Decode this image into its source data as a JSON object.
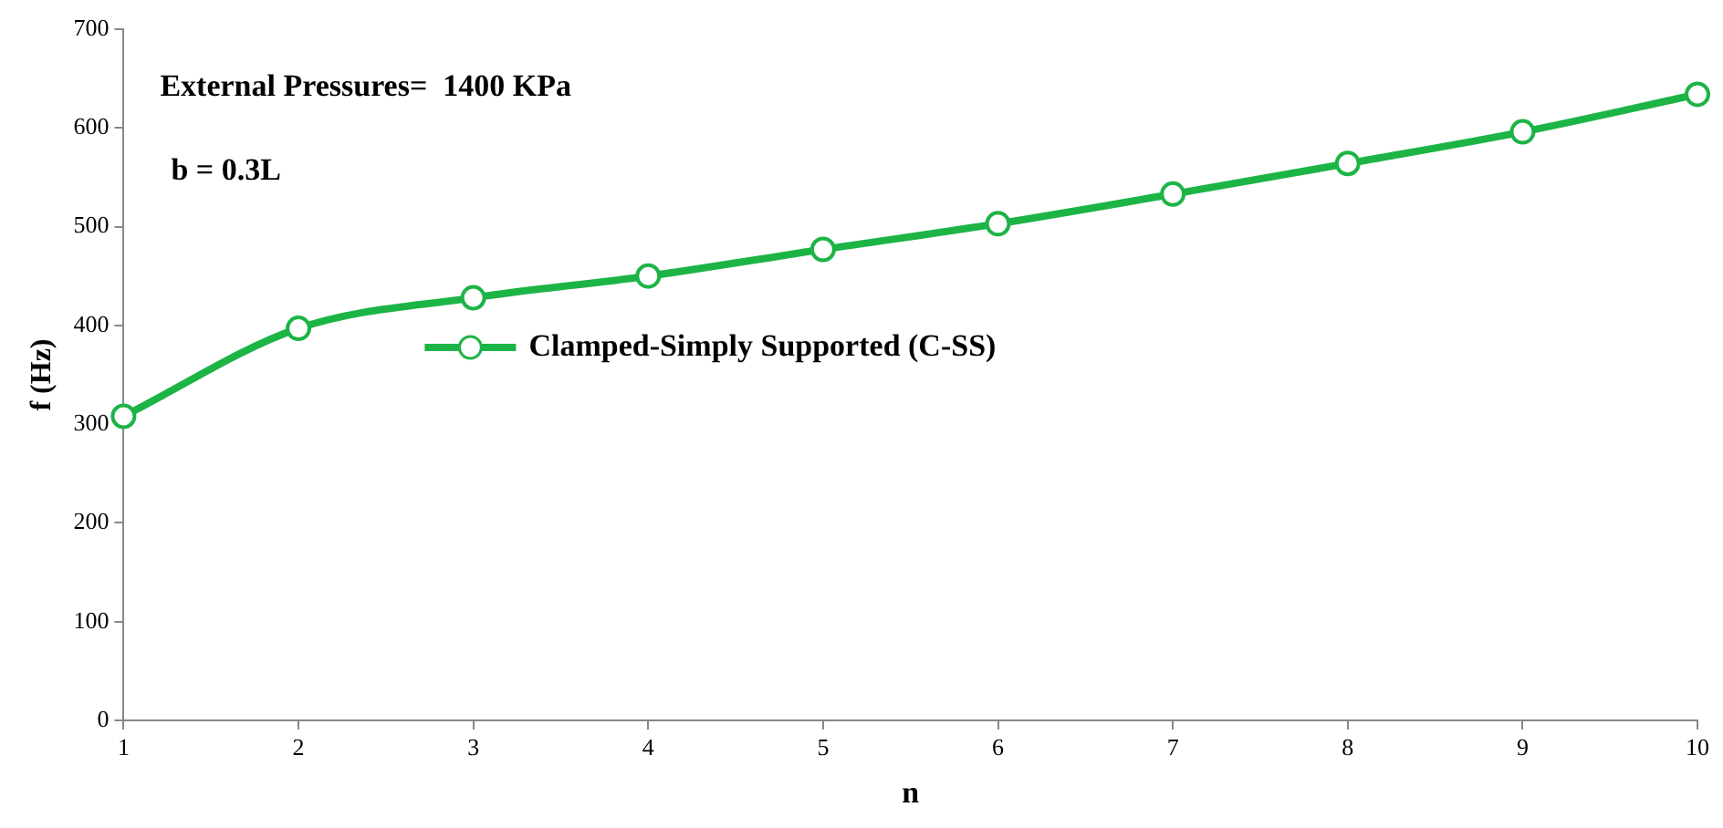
{
  "chart_data": {
    "type": "line",
    "xlabel": "n",
    "ylabel": "f (Hz)",
    "x": [
      1,
      2,
      3,
      4,
      5,
      6,
      7,
      8,
      9,
      10
    ],
    "series": [
      {
        "name": "Clamped-Simply Supported (C-SS)",
        "color": "#1db446",
        "values": [
          308,
          397,
          428,
          450,
          477,
          503,
          533,
          564,
          596,
          634
        ]
      }
    ],
    "xlim": [
      1,
      10
    ],
    "xticks": [
      1,
      2,
      3,
      4,
      5,
      6,
      7,
      8,
      9,
      10
    ],
    "ylim": [
      0,
      700
    ],
    "yticks": [
      0,
      100,
      200,
      300,
      400,
      500,
      600,
      700
    ],
    "grid": false,
    "legend": "left",
    "marker": "circle",
    "line_style": "solid",
    "annotations": [
      "External Pressures=  1400 KPa",
      "b = 0.3L"
    ]
  }
}
